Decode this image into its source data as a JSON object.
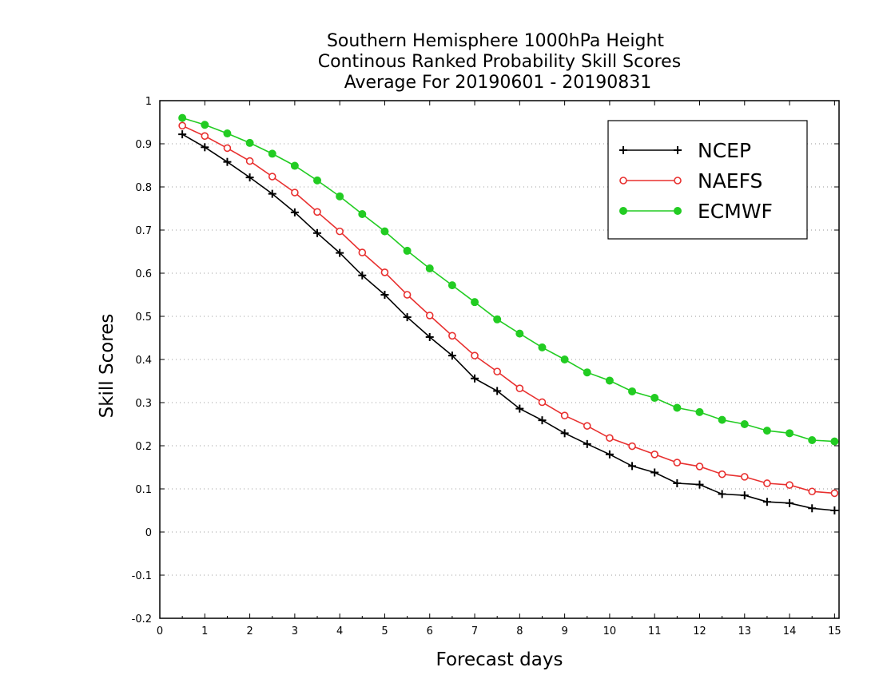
{
  "chart_data": {
    "type": "line",
    "title_lines": [
      "Southern Hemisphere 1000hPa Height",
      "Continous Ranked Probability Skill Scores",
      "Average For 20190601 - 20190831"
    ],
    "xlabel": "Forecast days",
    "ylabel": "Skill Scores",
    "xlim": [
      0,
      15.1
    ],
    "ylim": [
      -0.2,
      1
    ],
    "x_ticks": [
      0,
      1,
      2,
      3,
      4,
      5,
      6,
      7,
      8,
      9,
      10,
      11,
      12,
      13,
      14,
      15
    ],
    "x_tick_labels": [
      "0",
      "1",
      "2",
      "3",
      "4",
      "5",
      "6",
      "7",
      "8",
      "9",
      "10",
      "11",
      "12",
      "13",
      "14",
      "15"
    ],
    "y_ticks": [
      -0.2,
      -0.1,
      0,
      0.1,
      0.2,
      0.3,
      0.4,
      0.5,
      0.6,
      0.7,
      0.8,
      0.9,
      1
    ],
    "y_tick_labels": [
      "-0.2",
      "-0.1",
      "0",
      "0.1",
      "0.2",
      "0.3",
      "0.4",
      "0.5",
      "0.6",
      "0.7",
      "0.8",
      "0.9",
      "1"
    ],
    "grid": "horizontal dotted",
    "legend_position": "top-right",
    "x": [
      0.5,
      1,
      1.5,
      2,
      2.5,
      3,
      3.5,
      4,
      4.5,
      5,
      5.5,
      6,
      6.5,
      7,
      7.5,
      8,
      8.5,
      9,
      9.5,
      10,
      10.5,
      11,
      11.5,
      12,
      12.5,
      13,
      13.5,
      14,
      14.5,
      15
    ],
    "series": [
      {
        "name": "NCEP",
        "color": "#000000",
        "marker": "plus",
        "values": [
          0.922,
          0.892,
          0.858,
          0.822,
          0.784,
          0.741,
          0.693,
          0.647,
          0.595,
          0.55,
          0.498,
          0.452,
          0.409,
          0.356,
          0.327,
          0.286,
          0.259,
          0.229,
          0.204,
          0.18,
          0.153,
          0.138,
          0.113,
          0.11,
          0.088,
          0.085,
          0.07,
          0.067,
          0.055,
          0.05
        ]
      },
      {
        "name": "NAEFS",
        "color": "#e8302f",
        "marker": "open-circle",
        "values": [
          0.942,
          0.918,
          0.89,
          0.86,
          0.824,
          0.787,
          0.742,
          0.697,
          0.648,
          0.602,
          0.55,
          0.502,
          0.455,
          0.409,
          0.372,
          0.333,
          0.301,
          0.27,
          0.246,
          0.218,
          0.199,
          0.18,
          0.161,
          0.152,
          0.134,
          0.128,
          0.113,
          0.109,
          0.094,
          0.09
        ]
      },
      {
        "name": "ECMWF",
        "color": "#22cc22",
        "marker": "filled-circle",
        "values": [
          0.96,
          0.944,
          0.924,
          0.902,
          0.877,
          0.849,
          0.815,
          0.778,
          0.737,
          0.697,
          0.652,
          0.611,
          0.572,
          0.533,
          0.493,
          0.46,
          0.428,
          0.4,
          0.37,
          0.351,
          0.326,
          0.311,
          0.288,
          0.278,
          0.26,
          0.25,
          0.235,
          0.229,
          0.213,
          0.21
        ]
      }
    ]
  }
}
